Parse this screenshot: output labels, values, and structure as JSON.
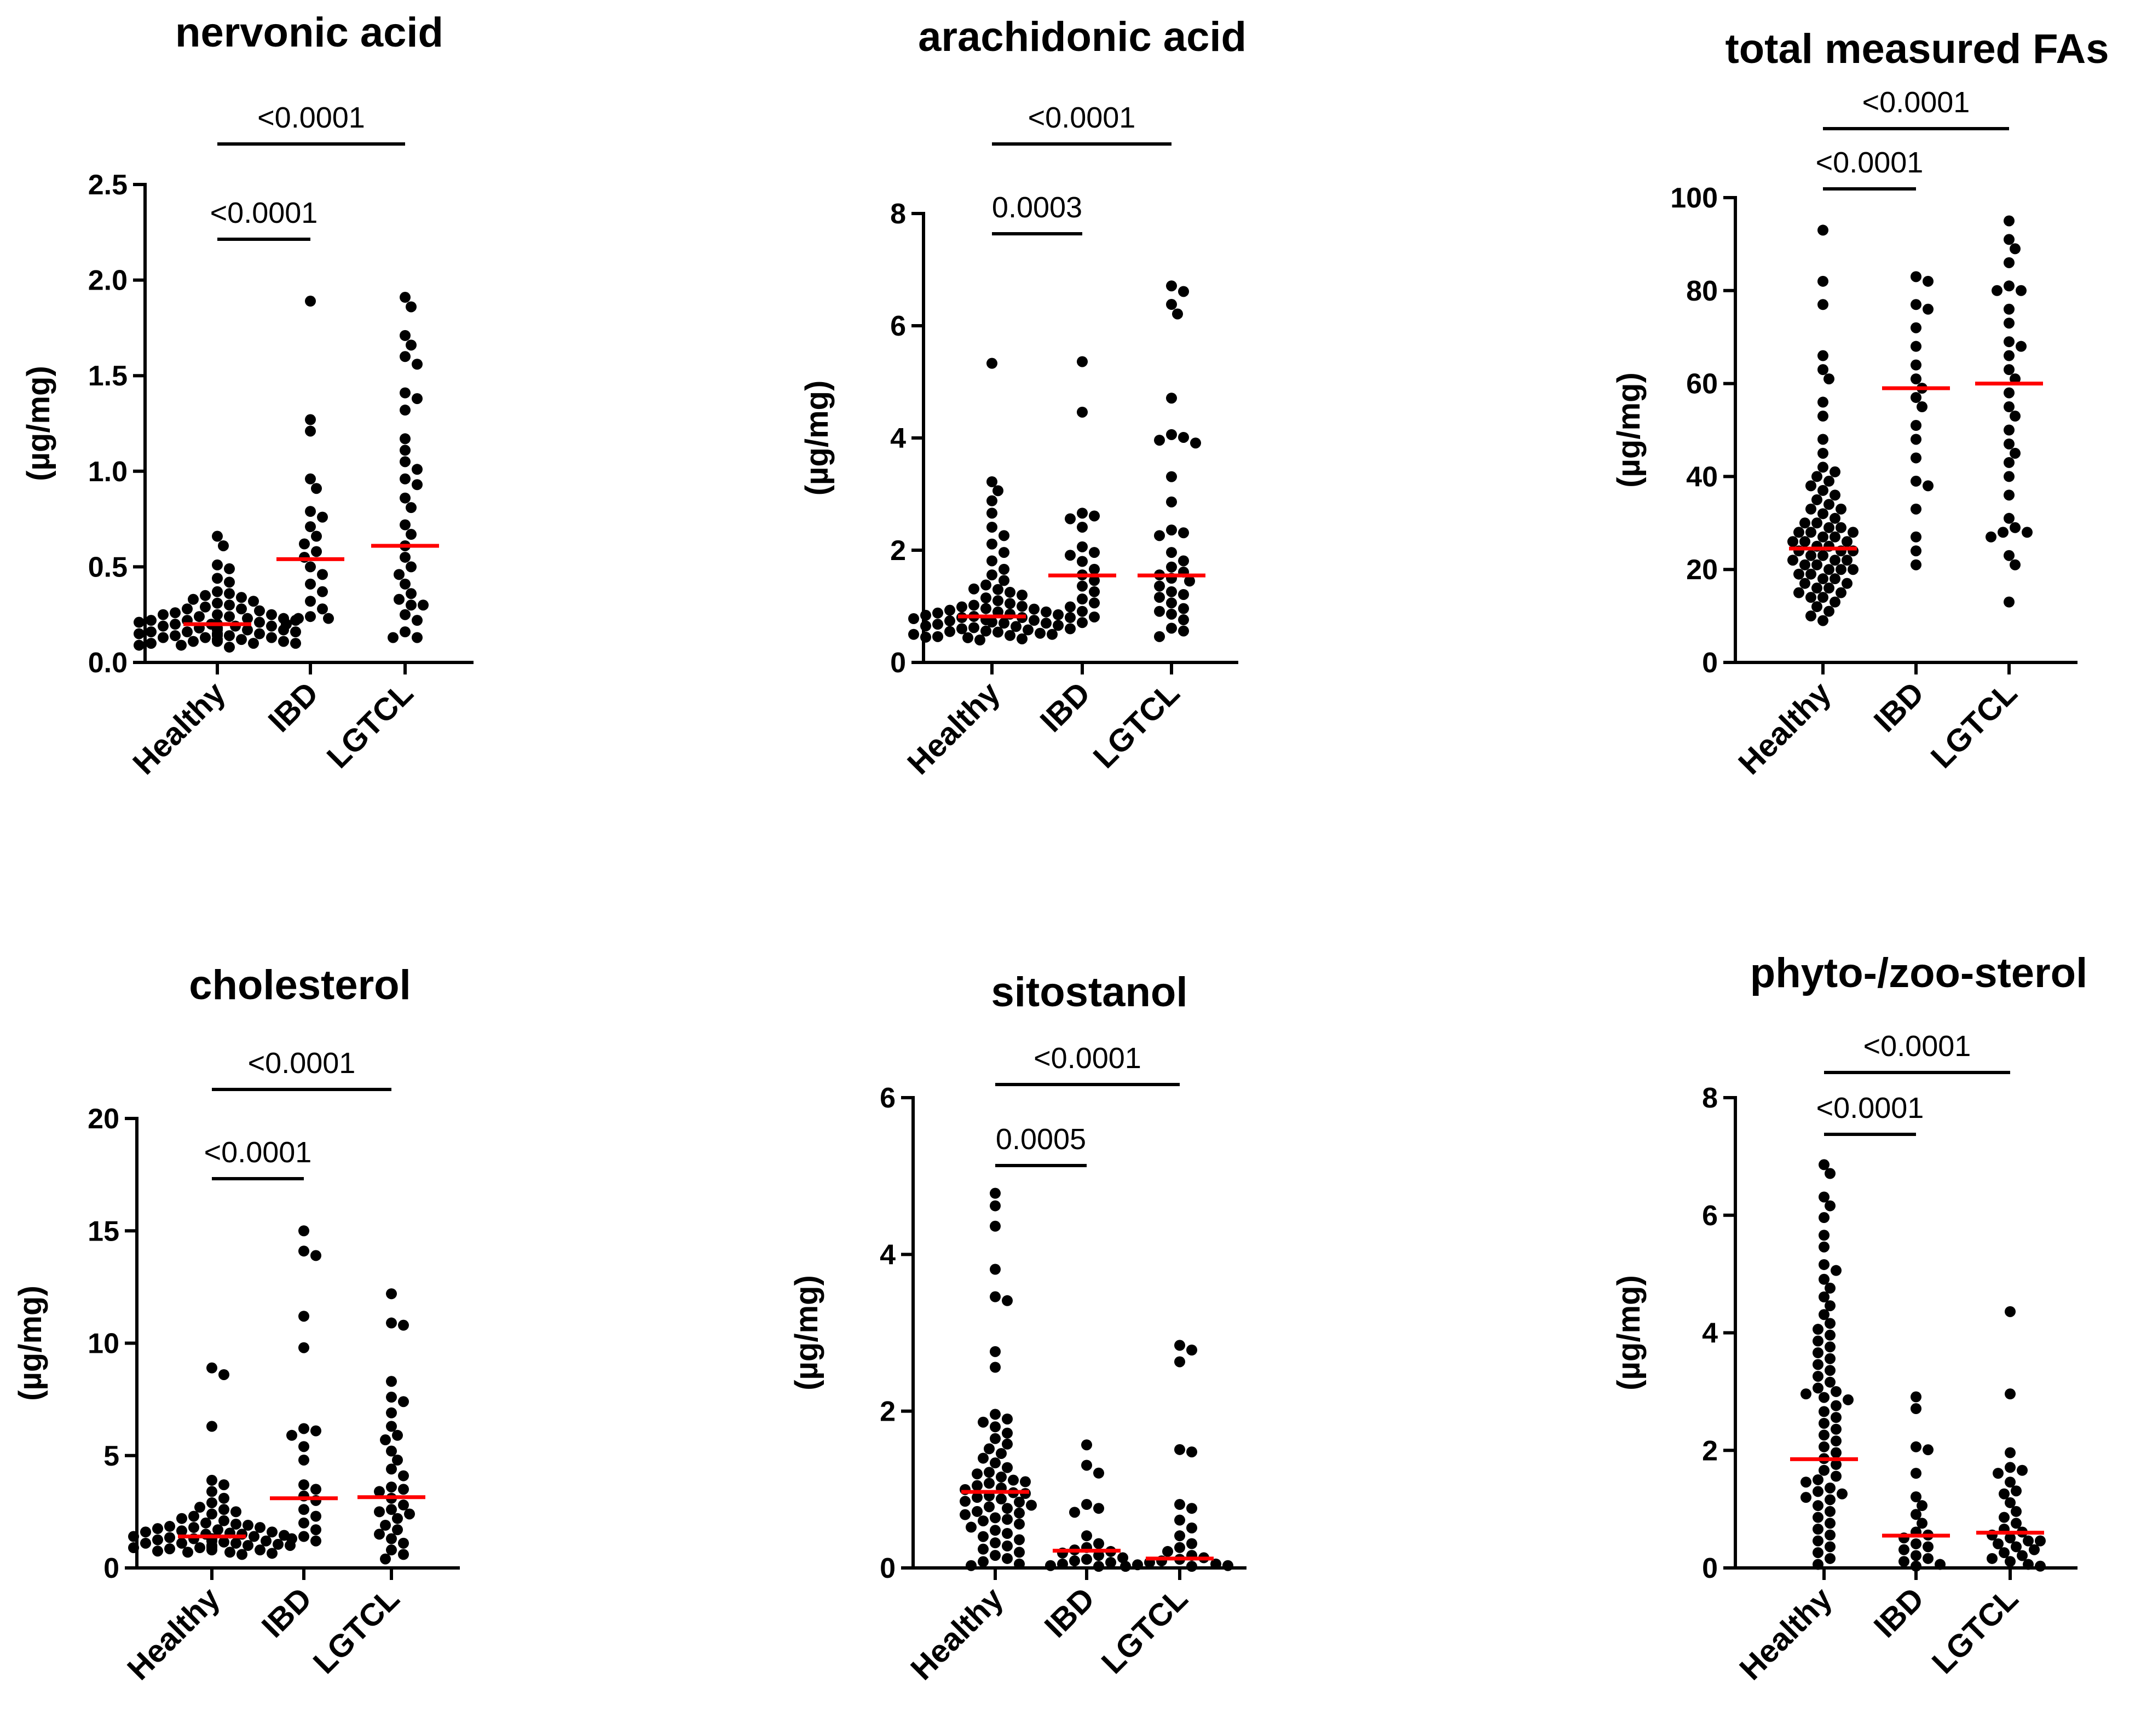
{
  "chart_data": [
    {
      "type": "scatter",
      "title": "nervonic acid",
      "ylabel": "(µg/mg)",
      "categories": [
        "Healthy",
        "IBD",
        "LGTCL"
      ],
      "ylim": [
        0,
        2.5
      ],
      "yticks": [
        0.0,
        0.5,
        1.0,
        1.5,
        2.0,
        2.5
      ],
      "tick_decimals": 1,
      "medians": [
        0.2,
        0.54,
        0.61
      ],
      "comparisons": [
        {
          "from": "Healthy",
          "to": "IBD",
          "label": "<0.0001"
        },
        {
          "from": "Healthy",
          "to": "LGTCL",
          "label": "<0.0001"
        }
      ],
      "series": [
        {
          "values": [
            0.66,
            0.61,
            0.51,
            0.49,
            0.44,
            0.42,
            0.37,
            0.36,
            0.35,
            0.34,
            0.33,
            0.32,
            0.31,
            0.3,
            0.29,
            0.28,
            0.28,
            0.27,
            0.26,
            0.25,
            0.25,
            0.24,
            0.24,
            0.23,
            0.23,
            0.22,
            0.22,
            0.22,
            0.21,
            0.21,
            0.2,
            0.2,
            0.2,
            0.19,
            0.19,
            0.19,
            0.18,
            0.18,
            0.18,
            0.17,
            0.17,
            0.17,
            0.16,
            0.16,
            0.16,
            0.15,
            0.15,
            0.15,
            0.14,
            0.14,
            0.14,
            0.13,
            0.13,
            0.13,
            0.12,
            0.12,
            0.12,
            0.11,
            0.11,
            0.11,
            0.1,
            0.1,
            0.1,
            0.09,
            0.09,
            0.08,
            0.15,
            0.2,
            0.25
          ]
        },
        {
          "values": [
            1.89,
            1.27,
            1.21,
            0.96,
            0.91,
            0.79,
            0.76,
            0.71,
            0.66,
            0.62,
            0.58,
            0.55,
            0.5,
            0.46,
            0.41,
            0.37,
            0.32,
            0.28,
            0.24,
            0.23,
            0.23,
            0.2
          ]
        },
        {
          "values": [
            1.91,
            1.86,
            1.71,
            1.66,
            1.6,
            1.56,
            1.41,
            1.38,
            1.32,
            1.17,
            1.11,
            1.05,
            1.01,
            0.96,
            0.93,
            0.86,
            0.81,
            0.72,
            0.67,
            0.61,
            0.55,
            0.5,
            0.46,
            0.41,
            0.36,
            0.33,
            0.3,
            0.3,
            0.25,
            0.22,
            0.16,
            0.13,
            0.13
          ]
        }
      ]
    },
    {
      "type": "scatter",
      "title": "arachidonic acid",
      "ylabel": "(µg/mg)",
      "categories": [
        "Healthy",
        "IBD",
        "LGTCL"
      ],
      "ylim": [
        0,
        8
      ],
      "yticks": [
        0,
        2,
        4,
        6,
        8
      ],
      "tick_decimals": 0,
      "medians": [
        0.82,
        1.55,
        1.55
      ],
      "comparisons": [
        {
          "from": "Healthy",
          "to": "IBD",
          "label": "0.0003"
        },
        {
          "from": "Healthy",
          "to": "LGTCL",
          "label": "<0.0001"
        }
      ],
      "series": [
        {
          "values": [
            5.33,
            3.22,
            3.06,
            2.88,
            2.66,
            2.41,
            2.26,
            2.11,
            1.96,
            1.81,
            1.66,
            1.56,
            1.46,
            1.38,
            1.31,
            1.25,
            1.2,
            1.15,
            1.1,
            1.05,
            1.02,
            0.99,
            0.96,
            0.93,
            0.9,
            0.88,
            0.86,
            0.84,
            0.82,
            0.8,
            0.78,
            0.76,
            0.74,
            0.72,
            0.7,
            0.68,
            0.66,
            0.64,
            0.62,
            0.6,
            0.58,
            0.56,
            0.54,
            0.52,
            0.5,
            0.48,
            0.46,
            0.44,
            0.42,
            0.4,
            0.75,
            0.85,
            0.95,
            1.0,
            0.9,
            0.7,
            0.6,
            0.55,
            0.65,
            0.8,
            1.3,
            0.5,
            0.45,
            0.8
          ]
        },
        {
          "values": [
            5.36,
            4.46,
            2.66,
            2.61,
            2.56,
            2.41,
            2.06,
            1.96,
            1.91,
            1.8,
            1.66,
            1.56,
            1.46,
            1.36,
            1.26,
            1.13,
            1.06,
            0.99,
            0.91,
            0.81,
            0.71
          ]
        },
        {
          "values": [
            6.71,
            6.61,
            6.38,
            6.21,
            4.71,
            4.06,
            4.01,
            3.96,
            3.91,
            3.31,
            2.86,
            2.36,
            2.31,
            2.26,
            1.96,
            1.81,
            1.7,
            1.61,
            1.56,
            1.5,
            1.45,
            1.36,
            1.26,
            1.21,
            1.16,
            1.06,
            0.96,
            0.91,
            0.86,
            0.76,
            0.61,
            0.56,
            0.46
          ]
        }
      ]
    },
    {
      "type": "scatter",
      "title": "total measured FAs",
      "ylabel": "(µg/mg)",
      "categories": [
        "Healthy",
        "IBD",
        "LGTCL"
      ],
      "ylim": [
        0,
        100
      ],
      "yticks": [
        0,
        20,
        40,
        60,
        80,
        100
      ],
      "tick_decimals": 0,
      "medians": [
        24.5,
        59,
        60
      ],
      "comparisons": [
        {
          "from": "Healthy",
          "to": "IBD",
          "label": "<0.0001"
        },
        {
          "from": "Healthy",
          "to": "LGTCL",
          "label": "<0.0001"
        }
      ],
      "series": [
        {
          "values": [
            93,
            82,
            77,
            66,
            63,
            61,
            56,
            53,
            48,
            45,
            42,
            41,
            40,
            39,
            38,
            37,
            36,
            35,
            34,
            33,
            32,
            31,
            30,
            29,
            29,
            28,
            28,
            27,
            27,
            26,
            26,
            25,
            25,
            24,
            24,
            23,
            23,
            22,
            22,
            21,
            21,
            20,
            20,
            19,
            19,
            18,
            18,
            17,
            17,
            16,
            16,
            15,
            15,
            14,
            14,
            13,
            12,
            11,
            10,
            9,
            30,
            26,
            22,
            33,
            20,
            24,
            28
          ]
        },
        {
          "values": [
            83,
            82,
            77,
            76,
            72,
            68,
            64,
            61,
            59,
            57,
            55,
            51,
            48,
            44,
            39,
            38,
            33,
            27,
            24,
            21
          ]
        },
        {
          "values": [
            95,
            91,
            89,
            86,
            81,
            80,
            80,
            76,
            73,
            69,
            68,
            66,
            63,
            61,
            58,
            55,
            53,
            50,
            47,
            45,
            43,
            40,
            36,
            31,
            29,
            28,
            28,
            27,
            23,
            21,
            13
          ]
        }
      ]
    },
    {
      "type": "scatter",
      "title": "cholesterol",
      "ylabel": "(µg/mg)",
      "categories": [
        "Healthy",
        "IBD",
        "LGTCL"
      ],
      "ylim": [
        0,
        20
      ],
      "yticks": [
        0,
        5,
        10,
        15,
        20
      ],
      "tick_decimals": 0,
      "medians": [
        1.4,
        3.1,
        3.15
      ],
      "comparisons": [
        {
          "from": "Healthy",
          "to": "IBD",
          "label": "<0.0001"
        },
        {
          "from": "Healthy",
          "to": "LGTCL",
          "label": "<0.0001"
        }
      ],
      "series": [
        {
          "values": [
            8.9,
            8.6,
            6.3,
            3.9,
            3.7,
            3.4,
            3.1,
            2.9,
            2.7,
            2.5,
            2.4,
            2.3,
            2.2,
            2.1,
            2.0,
            1.95,
            1.9,
            1.85,
            1.8,
            1.75,
            1.7,
            1.65,
            1.6,
            1.55,
            1.5,
            1.45,
            1.4,
            1.4,
            1.35,
            1.3,
            1.3,
            1.25,
            1.2,
            1.2,
            1.15,
            1.1,
            1.1,
            1.05,
            1.0,
            1.0,
            0.95,
            0.9,
            0.9,
            0.85,
            0.8,
            0.8,
            0.75,
            0.7,
            0.7,
            0.65,
            0.6,
            1.6,
            1.3,
            1.1,
            0.9,
            1.5,
            1.8,
            2.6,
            1.2,
            1.0
          ]
        },
        {
          "values": [
            15.0,
            14.1,
            13.9,
            11.2,
            9.8,
            6.2,
            6.1,
            5.9,
            5.4,
            4.8,
            3.7,
            3.5,
            3.2,
            3.0,
            2.6,
            2.3,
            2.0,
            1.7,
            1.4,
            1.3,
            1.2
          ]
        },
        {
          "values": [
            12.2,
            10.9,
            10.8,
            8.3,
            7.6,
            7.4,
            6.9,
            6.3,
            5.9,
            5.7,
            5.2,
            4.8,
            4.4,
            4.1,
            3.6,
            3.5,
            3.4,
            3.1,
            2.8,
            2.6,
            2.5,
            2.4,
            2.2,
            1.9,
            1.7,
            1.5,
            1.3,
            1.1,
            0.8,
            0.6,
            0.4
          ]
        }
      ]
    },
    {
      "type": "scatter",
      "title": "sitostanol",
      "ylabel": "(µg/mg)",
      "categories": [
        "Healthy",
        "IBD",
        "LGTCL"
      ],
      "ylim": [
        0,
        6
      ],
      "yticks": [
        0,
        2,
        4,
        6
      ],
      "tick_decimals": 0,
      "medians": [
        0.97,
        0.22,
        0.12
      ],
      "comparisons": [
        {
          "from": "Healthy",
          "to": "IBD",
          "label": "0.0005"
        },
        {
          "from": "Healthy",
          "to": "LGTCL",
          "label": "<0.0001"
        }
      ],
      "series": [
        {
          "values": [
            4.78,
            4.62,
            4.36,
            3.81,
            3.46,
            3.41,
            2.76,
            2.56,
            1.96,
            1.9,
            1.86,
            1.8,
            1.72,
            1.65,
            1.58,
            1.52,
            1.46,
            1.4,
            1.34,
            1.28,
            1.22,
            1.16,
            1.1,
            1.05,
            1.0,
            0.96,
            0.92,
            0.88,
            0.84,
            0.8,
            0.76,
            0.72,
            0.68,
            0.64,
            0.6,
            0.56,
            0.52,
            0.48,
            0.44,
            0.4,
            0.36,
            0.32,
            0.28,
            0.24,
            0.2,
            0.16,
            0.12,
            0.08,
            0.05,
            0.03,
            1.08,
            1.02,
            0.95,
            0.9,
            0.85,
            1.12,
            0.78,
            0.7,
            0.62,
            1.2
          ]
        },
        {
          "values": [
            1.57,
            1.31,
            1.21,
            0.81,
            0.76,
            0.71,
            0.41,
            0.31,
            0.26,
            0.23,
            0.21,
            0.19,
            0.16,
            0.13,
            0.11,
            0.09,
            0.07,
            0.05,
            0.03,
            0.02
          ]
        },
        {
          "values": [
            2.84,
            2.78,
            2.63,
            1.51,
            1.48,
            0.81,
            0.76,
            0.61,
            0.51,
            0.41,
            0.31,
            0.26,
            0.21,
            0.16,
            0.13,
            0.11,
            0.09,
            0.07,
            0.05,
            0.04,
            0.03,
            0.02,
            0.02
          ]
        }
      ]
    },
    {
      "type": "scatter",
      "title": "phyto-/zoo-sterol",
      "ylabel": "(µg/mg)",
      "categories": [
        "Healthy",
        "IBD",
        "LGTCL"
      ],
      "ylim": [
        0,
        8
      ],
      "yticks": [
        0,
        2,
        4,
        6,
        8
      ],
      "tick_decimals": 0,
      "medians": [
        1.85,
        0.55,
        0.6
      ],
      "comparisons": [
        {
          "from": "Healthy",
          "to": "IBD",
          "label": "<0.0001"
        },
        {
          "from": "Healthy",
          "to": "LGTCL",
          "label": "<0.0001"
        }
      ],
      "series": [
        {
          "values": [
            6.86,
            6.71,
            6.31,
            6.16,
            5.96,
            5.66,
            5.46,
            5.16,
            5.06,
            4.91,
            4.76,
            4.61,
            4.46,
            4.31,
            4.16,
            4.06,
            3.96,
            3.86,
            3.76,
            3.66,
            3.56,
            3.46,
            3.36,
            3.26,
            3.16,
            3.06,
            2.96,
            2.86,
            2.76,
            2.66,
            2.56,
            2.46,
            2.36,
            2.26,
            2.16,
            2.06,
            1.96,
            1.86,
            1.76,
            1.66,
            1.56,
            1.46,
            1.36,
            1.26,
            1.16,
            1.06,
            0.96,
            0.86,
            0.76,
            0.66,
            0.56,
            0.46,
            0.36,
            0.26,
            0.16,
            0.06,
            3.0,
            2.9,
            1.2,
            1.3,
            1.5
          ]
        },
        {
          "values": [
            2.91,
            2.71,
            2.06,
            2.01,
            1.61,
            1.21,
            1.06,
            0.91,
            0.76,
            0.61,
            0.51,
            0.41,
            0.31,
            0.21,
            0.16,
            0.11,
            0.06,
            0.03,
            0.56,
            0.36
          ]
        },
        {
          "values": [
            4.36,
            2.96,
            1.96,
            1.71,
            1.66,
            1.61,
            1.46,
            1.31,
            1.26,
            1.11,
            0.96,
            0.86,
            0.76,
            0.66,
            0.61,
            0.51,
            0.46,
            0.41,
            0.36,
            0.31,
            0.26,
            0.21,
            0.16,
            0.11,
            0.06,
            0.03,
            0.56,
            0.46
          ]
        }
      ]
    }
  ]
}
